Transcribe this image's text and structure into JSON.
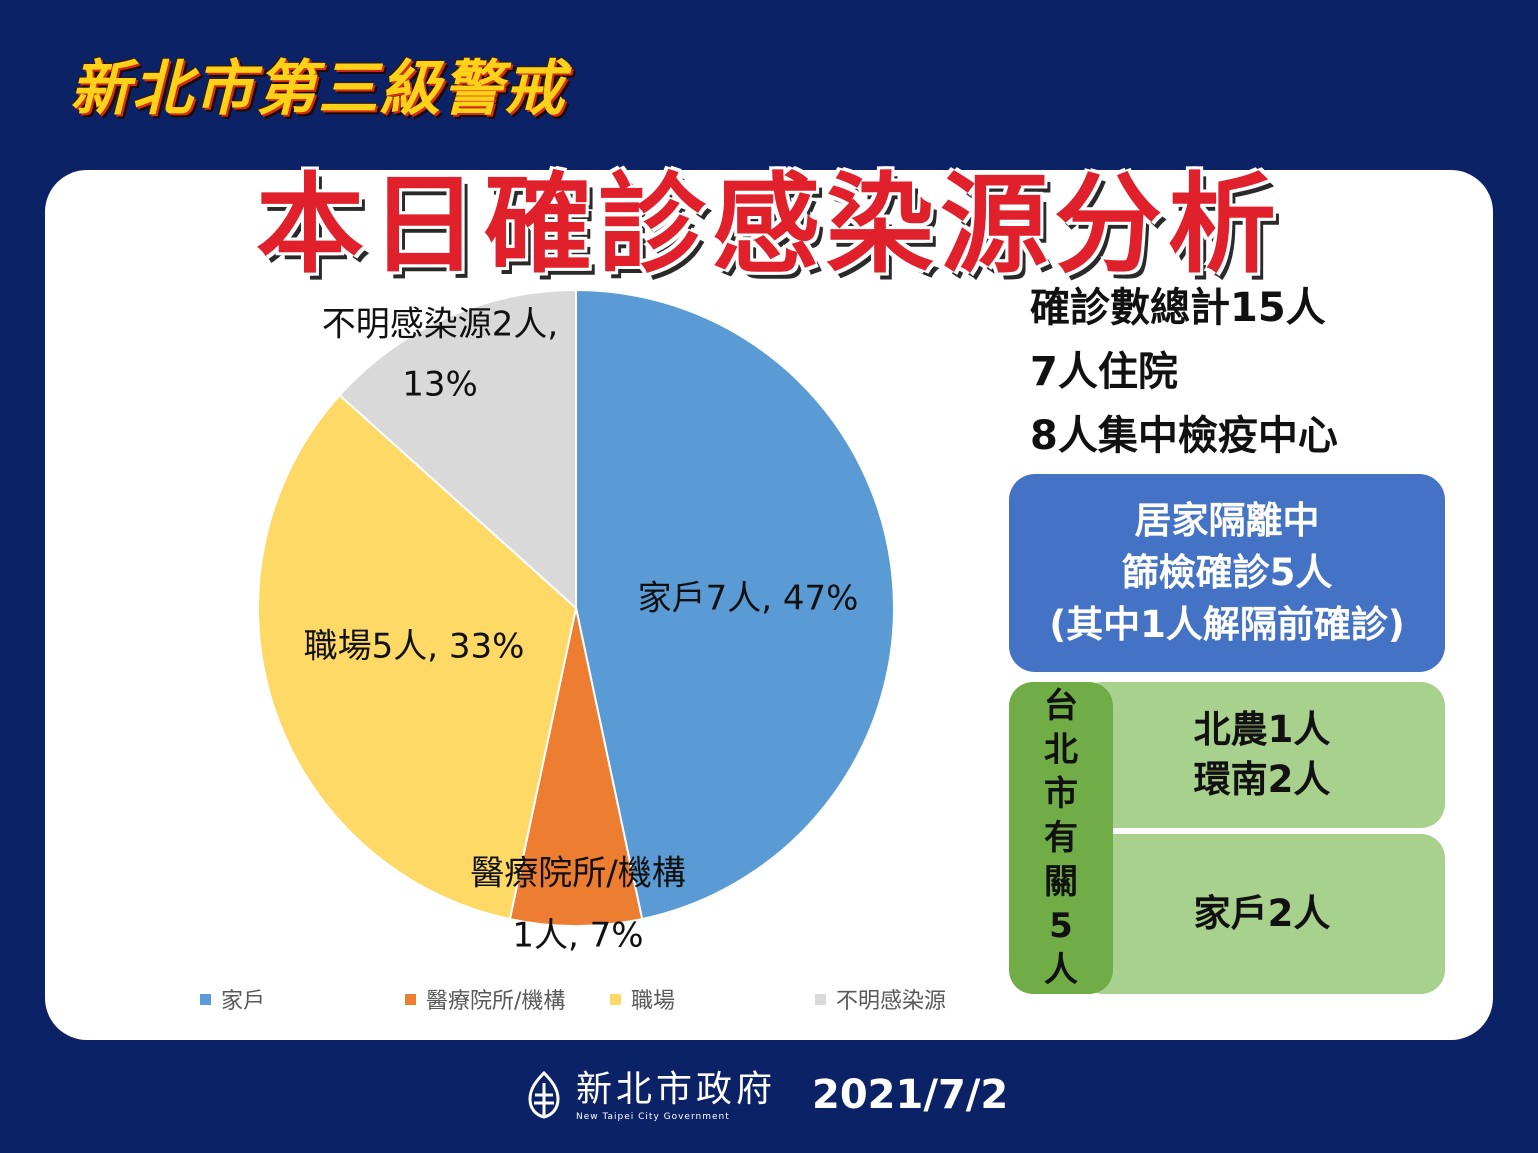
{
  "header": {
    "kicker": "新北市第三級警戒",
    "title": "本日確診感染源分析"
  },
  "chart_data": {
    "type": "pie",
    "categories": [
      "家戶",
      "醫療院所/機構",
      "職場",
      "不明感染源"
    ],
    "values": [
      7,
      1,
      5,
      2
    ],
    "percents": [
      47,
      7,
      33,
      13
    ],
    "colors": [
      "#5b9bd5",
      "#ed7d31",
      "#ffd966",
      "#d9d9d9"
    ],
    "data_labels": [
      [
        "家戶7人, 47%"
      ],
      [
        "醫療院所/機構",
        "1人, 7%"
      ],
      [
        "職場5人, 33%"
      ],
      [
        "不明感染源2人,",
        "13%"
      ]
    ],
    "legend_position": "bottom"
  },
  "summary": {
    "lines": [
      "確診數總計15人",
      "7人住院",
      "8人集中檢疫中心"
    ]
  },
  "home_isolation": {
    "lines": [
      "居家隔離中",
      "篩檢確診5人",
      "(其中1人解隔前確診)"
    ]
  },
  "taipei": {
    "side_chars": [
      "台",
      "北",
      "市",
      "有",
      "關",
      "5",
      "人"
    ],
    "top_lines": [
      "北農1人",
      "環南2人"
    ],
    "bottom_lines": [
      "家戶2人"
    ]
  },
  "footer": {
    "org_cn": "新北市政府",
    "org_en": "New Taipei City Government",
    "date": "2021/7/2"
  }
}
